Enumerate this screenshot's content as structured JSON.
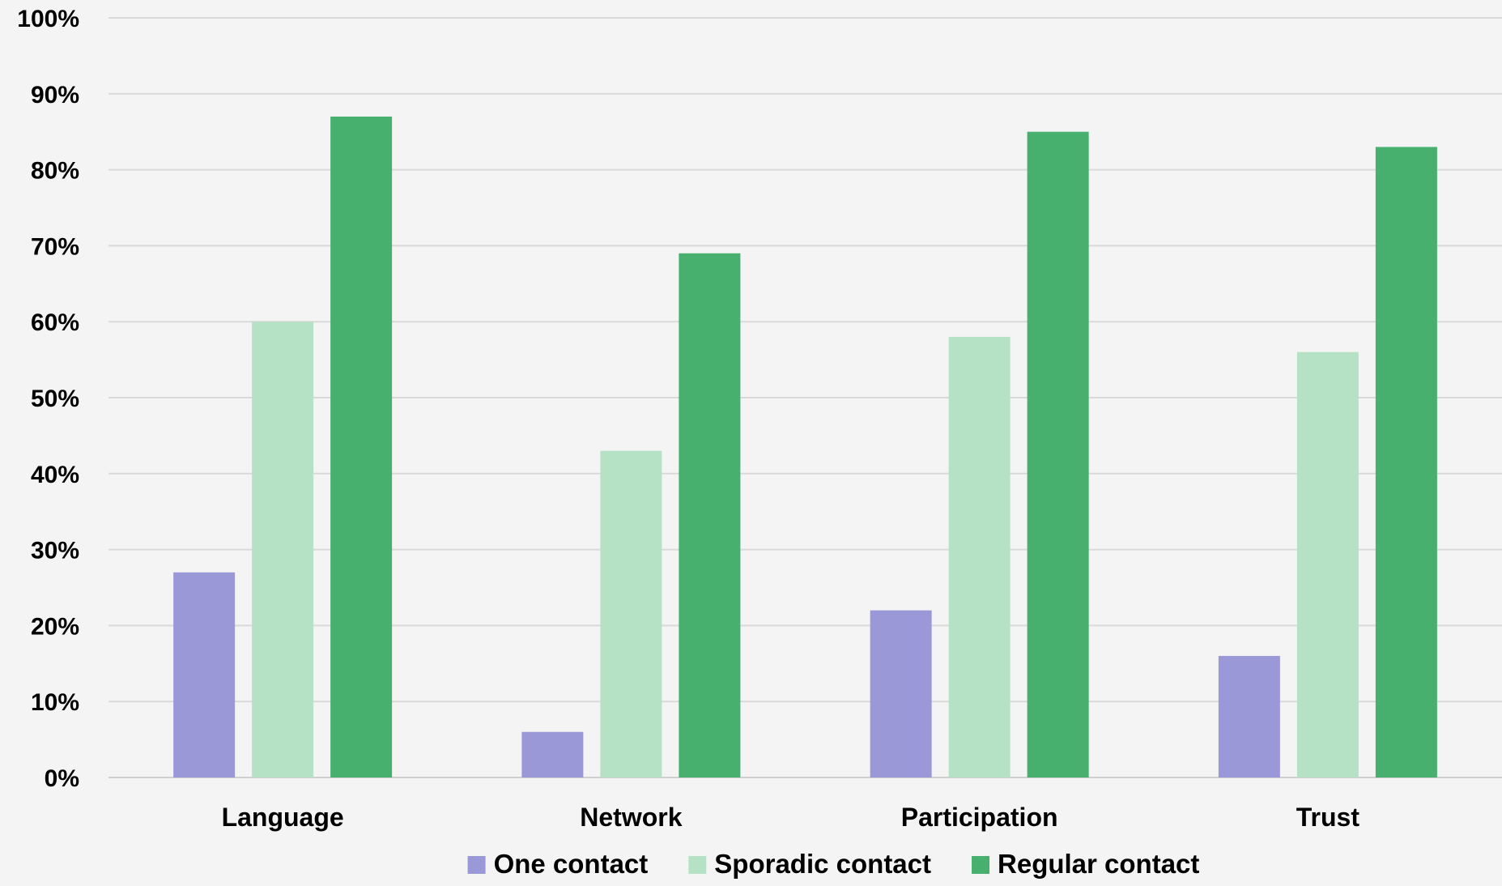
{
  "chart_data": {
    "type": "bar",
    "categories": [
      "Language",
      "Network",
      "Participation",
      "Trust"
    ],
    "series": [
      {
        "name": "One contact",
        "color": "#9b98d8",
        "values": [
          27,
          6,
          22,
          16
        ]
      },
      {
        "name": "Sporadic contact",
        "color": "#b5e2c4",
        "values": [
          60,
          43,
          58,
          56
        ]
      },
      {
        "name": "Regular contact",
        "color": "#48b06e",
        "values": [
          87,
          69,
          85,
          83
        ]
      }
    ],
    "ylim": [
      0,
      100
    ],
    "yticks": [
      "0%",
      "10%",
      "20%",
      "30%",
      "40%",
      "50%",
      "60%",
      "70%",
      "80%",
      "90%",
      "100%"
    ],
    "grid": true,
    "legend_position": "bottom"
  }
}
